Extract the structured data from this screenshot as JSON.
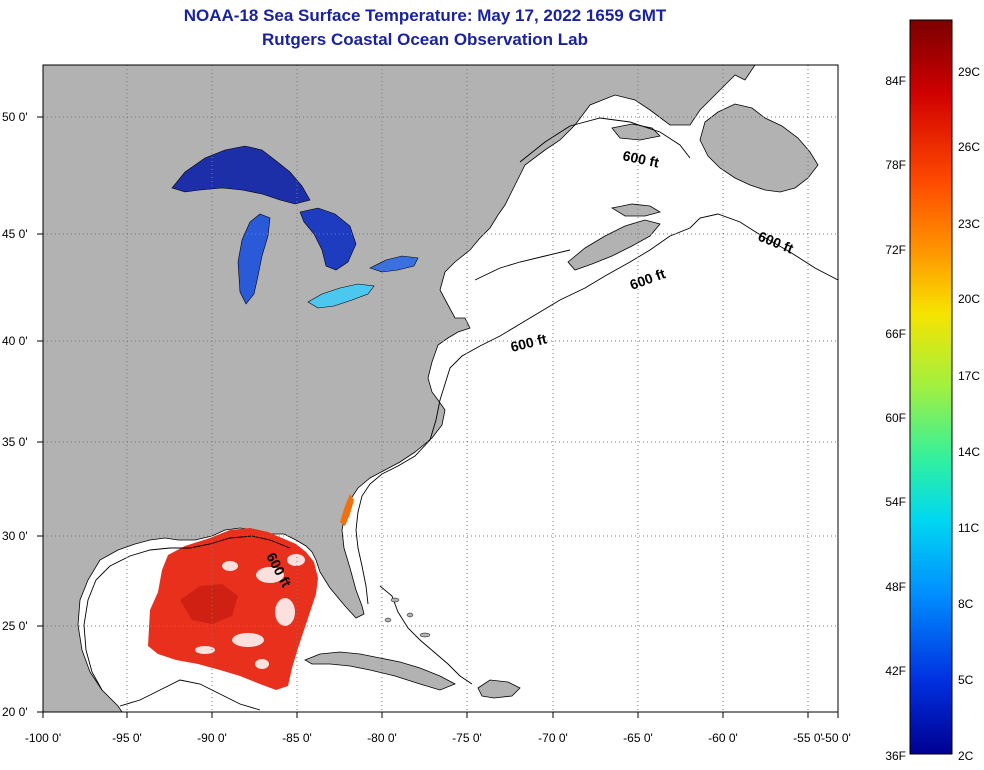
{
  "title": {
    "line1": "NOAA-18 Sea Surface Temperature:  May 17, 2022 1659 GMT",
    "line2": "Rutgers Coastal Ocean Observation Lab"
  },
  "map": {
    "lon_ticks": [
      "-100 0'",
      "-95 0'",
      "-90 0'",
      "-85 0'",
      "-80 0'",
      "-75 0'",
      "-70 0'",
      "-65 0'",
      "-60 0'",
      "-55 0'",
      "-50 0'"
    ],
    "lat_ticks": [
      "20 0'",
      "25 0'",
      "30 0'",
      "35 0'",
      "40 0'",
      "45 0'",
      "50 0'"
    ],
    "isobath_label": "600 ft",
    "colors": {
      "land": "#b2b2b2",
      "ocean": "#ffffff",
      "grid": "#7a7a7a",
      "title": "#1a22a0",
      "sst_gulf": "#e8301c",
      "sst_lake_superior": "#1c2fa8",
      "sst_lake_michigan": "#2a5ad8",
      "sst_lake_erie": "#4cc8f0"
    }
  },
  "colorbar": {
    "fahrenheit": [
      "84F",
      "78F",
      "72F",
      "66F",
      "60F",
      "54F",
      "48F",
      "42F",
      "36F"
    ],
    "celsius": [
      "29C",
      "26C",
      "23C",
      "20C",
      "17C",
      "14C",
      "11C",
      "8C",
      "5C",
      "2C"
    ],
    "scale_colors": [
      "#7a0000",
      "#d00000",
      "#ff4a00",
      "#ff9a00",
      "#f6e400",
      "#a0f040",
      "#30f0a0",
      "#00d8f0",
      "#0090ff",
      "#0030e0",
      "#000090"
    ]
  }
}
